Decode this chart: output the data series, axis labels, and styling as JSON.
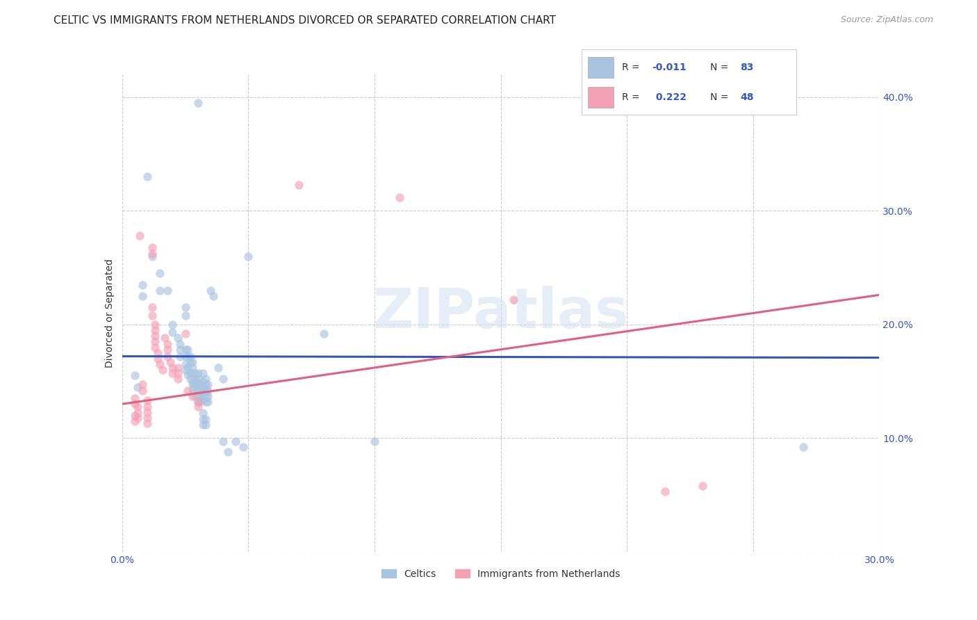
{
  "title": "CELTIC VS IMMIGRANTS FROM NETHERLANDS DIVORCED OR SEPARATED CORRELATION CHART",
  "source": "Source: ZipAtlas.com",
  "ylabel": "Divorced or Separated",
  "xlim": [
    0.0,
    0.3
  ],
  "ylim": [
    0.0,
    0.42
  ],
  "celtics_color": "#a8c4e0",
  "netherlands_color": "#f4a0b5",
  "trendline_celtics_color": "#3355bb",
  "trendline_netherlands_color": "#e06080",
  "watermark": "ZIPatlas",
  "celtics_label": "Celtics",
  "netherlands_label": "Immigrants from Netherlands",
  "celtics_R": -0.011,
  "celtics_N": 83,
  "netherlands_R": 0.222,
  "netherlands_N": 48,
  "celtics_scatter": [
    [
      0.005,
      0.155
    ],
    [
      0.006,
      0.145
    ],
    [
      0.008,
      0.235
    ],
    [
      0.008,
      0.225
    ],
    [
      0.01,
      0.33
    ],
    [
      0.012,
      0.26
    ],
    [
      0.015,
      0.245
    ],
    [
      0.015,
      0.23
    ],
    [
      0.018,
      0.23
    ],
    [
      0.02,
      0.2
    ],
    [
      0.02,
      0.193
    ],
    [
      0.022,
      0.188
    ],
    [
      0.023,
      0.183
    ],
    [
      0.023,
      0.178
    ],
    [
      0.023,
      0.172
    ],
    [
      0.025,
      0.215
    ],
    [
      0.025,
      0.208
    ],
    [
      0.025,
      0.178
    ],
    [
      0.025,
      0.172
    ],
    [
      0.025,
      0.165
    ],
    [
      0.025,
      0.16
    ],
    [
      0.026,
      0.178
    ],
    [
      0.026,
      0.172
    ],
    [
      0.026,
      0.162
    ],
    [
      0.026,
      0.156
    ],
    [
      0.027,
      0.172
    ],
    [
      0.027,
      0.167
    ],
    [
      0.027,
      0.157
    ],
    [
      0.027,
      0.152
    ],
    [
      0.028,
      0.167
    ],
    [
      0.028,
      0.162
    ],
    [
      0.028,
      0.157
    ],
    [
      0.028,
      0.15
    ],
    [
      0.028,
      0.147
    ],
    [
      0.028,
      0.143
    ],
    [
      0.029,
      0.157
    ],
    [
      0.029,
      0.152
    ],
    [
      0.029,
      0.15
    ],
    [
      0.029,
      0.147
    ],
    [
      0.029,
      0.142
    ],
    [
      0.029,
      0.137
    ],
    [
      0.03,
      0.157
    ],
    [
      0.03,
      0.152
    ],
    [
      0.03,
      0.147
    ],
    [
      0.03,
      0.142
    ],
    [
      0.03,
      0.137
    ],
    [
      0.03,
      0.132
    ],
    [
      0.031,
      0.147
    ],
    [
      0.031,
      0.142
    ],
    [
      0.031,
      0.137
    ],
    [
      0.031,
      0.132
    ],
    [
      0.032,
      0.157
    ],
    [
      0.032,
      0.15
    ],
    [
      0.032,
      0.145
    ],
    [
      0.032,
      0.14
    ],
    [
      0.032,
      0.135
    ],
    [
      0.032,
      0.122
    ],
    [
      0.032,
      0.117
    ],
    [
      0.032,
      0.112
    ],
    [
      0.033,
      0.152
    ],
    [
      0.033,
      0.147
    ],
    [
      0.033,
      0.142
    ],
    [
      0.033,
      0.137
    ],
    [
      0.033,
      0.132
    ],
    [
      0.033,
      0.117
    ],
    [
      0.033,
      0.112
    ],
    [
      0.034,
      0.147
    ],
    [
      0.034,
      0.142
    ],
    [
      0.034,
      0.137
    ],
    [
      0.034,
      0.132
    ],
    [
      0.035,
      0.23
    ],
    [
      0.036,
      0.225
    ],
    [
      0.038,
      0.162
    ],
    [
      0.04,
      0.152
    ],
    [
      0.04,
      0.097
    ],
    [
      0.042,
      0.088
    ],
    [
      0.045,
      0.097
    ],
    [
      0.048,
      0.092
    ],
    [
      0.05,
      0.26
    ],
    [
      0.08,
      0.192
    ],
    [
      0.1,
      0.097
    ],
    [
      0.27,
      0.092
    ],
    [
      0.03,
      0.395
    ]
  ],
  "netherlands_scatter": [
    [
      0.005,
      0.135
    ],
    [
      0.005,
      0.13
    ],
    [
      0.005,
      0.12
    ],
    [
      0.005,
      0.115
    ],
    [
      0.006,
      0.128
    ],
    [
      0.006,
      0.122
    ],
    [
      0.006,
      0.118
    ],
    [
      0.007,
      0.278
    ],
    [
      0.008,
      0.147
    ],
    [
      0.008,
      0.142
    ],
    [
      0.01,
      0.133
    ],
    [
      0.01,
      0.128
    ],
    [
      0.01,
      0.123
    ],
    [
      0.01,
      0.118
    ],
    [
      0.01,
      0.113
    ],
    [
      0.012,
      0.268
    ],
    [
      0.012,
      0.262
    ],
    [
      0.012,
      0.215
    ],
    [
      0.012,
      0.208
    ],
    [
      0.013,
      0.2
    ],
    [
      0.013,
      0.195
    ],
    [
      0.013,
      0.19
    ],
    [
      0.013,
      0.185
    ],
    [
      0.013,
      0.18
    ],
    [
      0.014,
      0.175
    ],
    [
      0.014,
      0.17
    ],
    [
      0.015,
      0.165
    ],
    [
      0.016,
      0.16
    ],
    [
      0.017,
      0.188
    ],
    [
      0.018,
      0.183
    ],
    [
      0.018,
      0.178
    ],
    [
      0.018,
      0.172
    ],
    [
      0.019,
      0.167
    ],
    [
      0.02,
      0.162
    ],
    [
      0.02,
      0.157
    ],
    [
      0.022,
      0.162
    ],
    [
      0.022,
      0.157
    ],
    [
      0.022,
      0.152
    ],
    [
      0.025,
      0.192
    ],
    [
      0.026,
      0.142
    ],
    [
      0.028,
      0.137
    ],
    [
      0.03,
      0.132
    ],
    [
      0.03,
      0.128
    ],
    [
      0.07,
      0.323
    ],
    [
      0.11,
      0.312
    ],
    [
      0.155,
      0.222
    ],
    [
      0.215,
      0.053
    ],
    [
      0.23,
      0.058
    ]
  ],
  "celtics_trend_x": [
    0.0,
    0.3
  ],
  "celtics_trend_y_intercept": 0.172,
  "celtics_trend_slope": -0.004,
  "netherlands_trend_x": [
    0.0,
    0.3
  ],
  "netherlands_trend_y_intercept": 0.13,
  "netherlands_trend_slope": 0.32,
  "background_color": "#ffffff",
  "grid_color": "#cccccc",
  "title_fontsize": 11,
  "axis_label_fontsize": 10,
  "tick_fontsize": 10,
  "scatter_size": 80,
  "scatter_alpha": 0.65,
  "legend_R_color": "#3355cc",
  "legend_N_color": "#3355cc",
  "legend_text_color": "#333333"
}
